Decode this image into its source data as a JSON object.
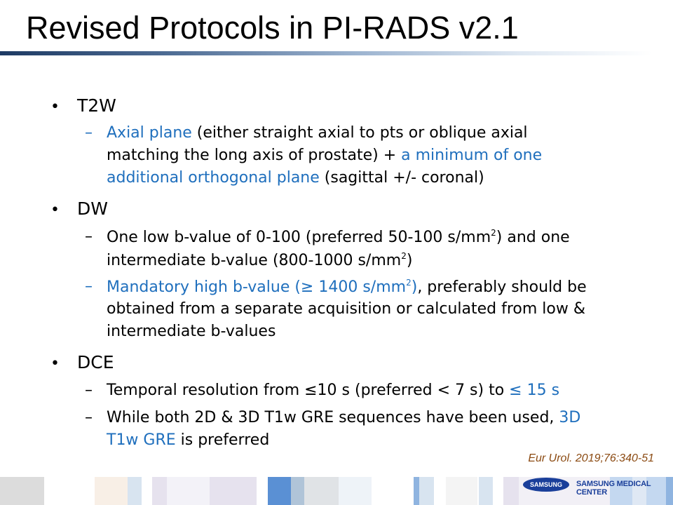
{
  "title": "Revised Protocols in PI-RADS v2.1",
  "sections": [
    {
      "heading": "T2W",
      "items": [
        {
          "seg": [
            "Axial plane",
            " (either straight axial to pts or oblique axial",
            "matching the long axis of prostate) + ",
            "a minimum of one",
            "additional orthogonal plane",
            " (sagittal +/- coronal)"
          ]
        }
      ]
    },
    {
      "heading": "DW",
      "items": [
        {
          "seg": [
            "One low b-value of 0-100 (preferred 50-100 s/mm",
            "2",
            ") and one",
            "intermediate b-value (800-1000 s/mm",
            "2",
            ")"
          ]
        },
        {
          "seg": [
            "Mandatory high b-value (≥ 1400 s/mm",
            "2",
            ")",
            ", preferably should be",
            "obtained from a separate acquisition or calculated from low &",
            "intermediate b-values"
          ]
        }
      ]
    },
    {
      "heading": "DCE",
      "items": [
        {
          "seg": [
            "Temporal resolution from ≤10 s (preferred < 7 s) to ",
            "≤ 15 s"
          ]
        },
        {
          "seg": [
            "While both 2D & 3D T1w GRE sequences have been used, ",
            "3D",
            "T1w GRE",
            " is preferred"
          ]
        }
      ]
    }
  ],
  "bullet": "•",
  "dash": "–",
  "citation": "Eur Urol. 2019;76:340-51",
  "footer": {
    "logo_text": "SAMSUNG",
    "org_name": "SAMSUNG MEDICAL CENTER"
  },
  "colors": {
    "accent_blue": "#1f6fbd",
    "citation_brown": "#8b4a12",
    "logo_blue": "#1a3f9a"
  }
}
